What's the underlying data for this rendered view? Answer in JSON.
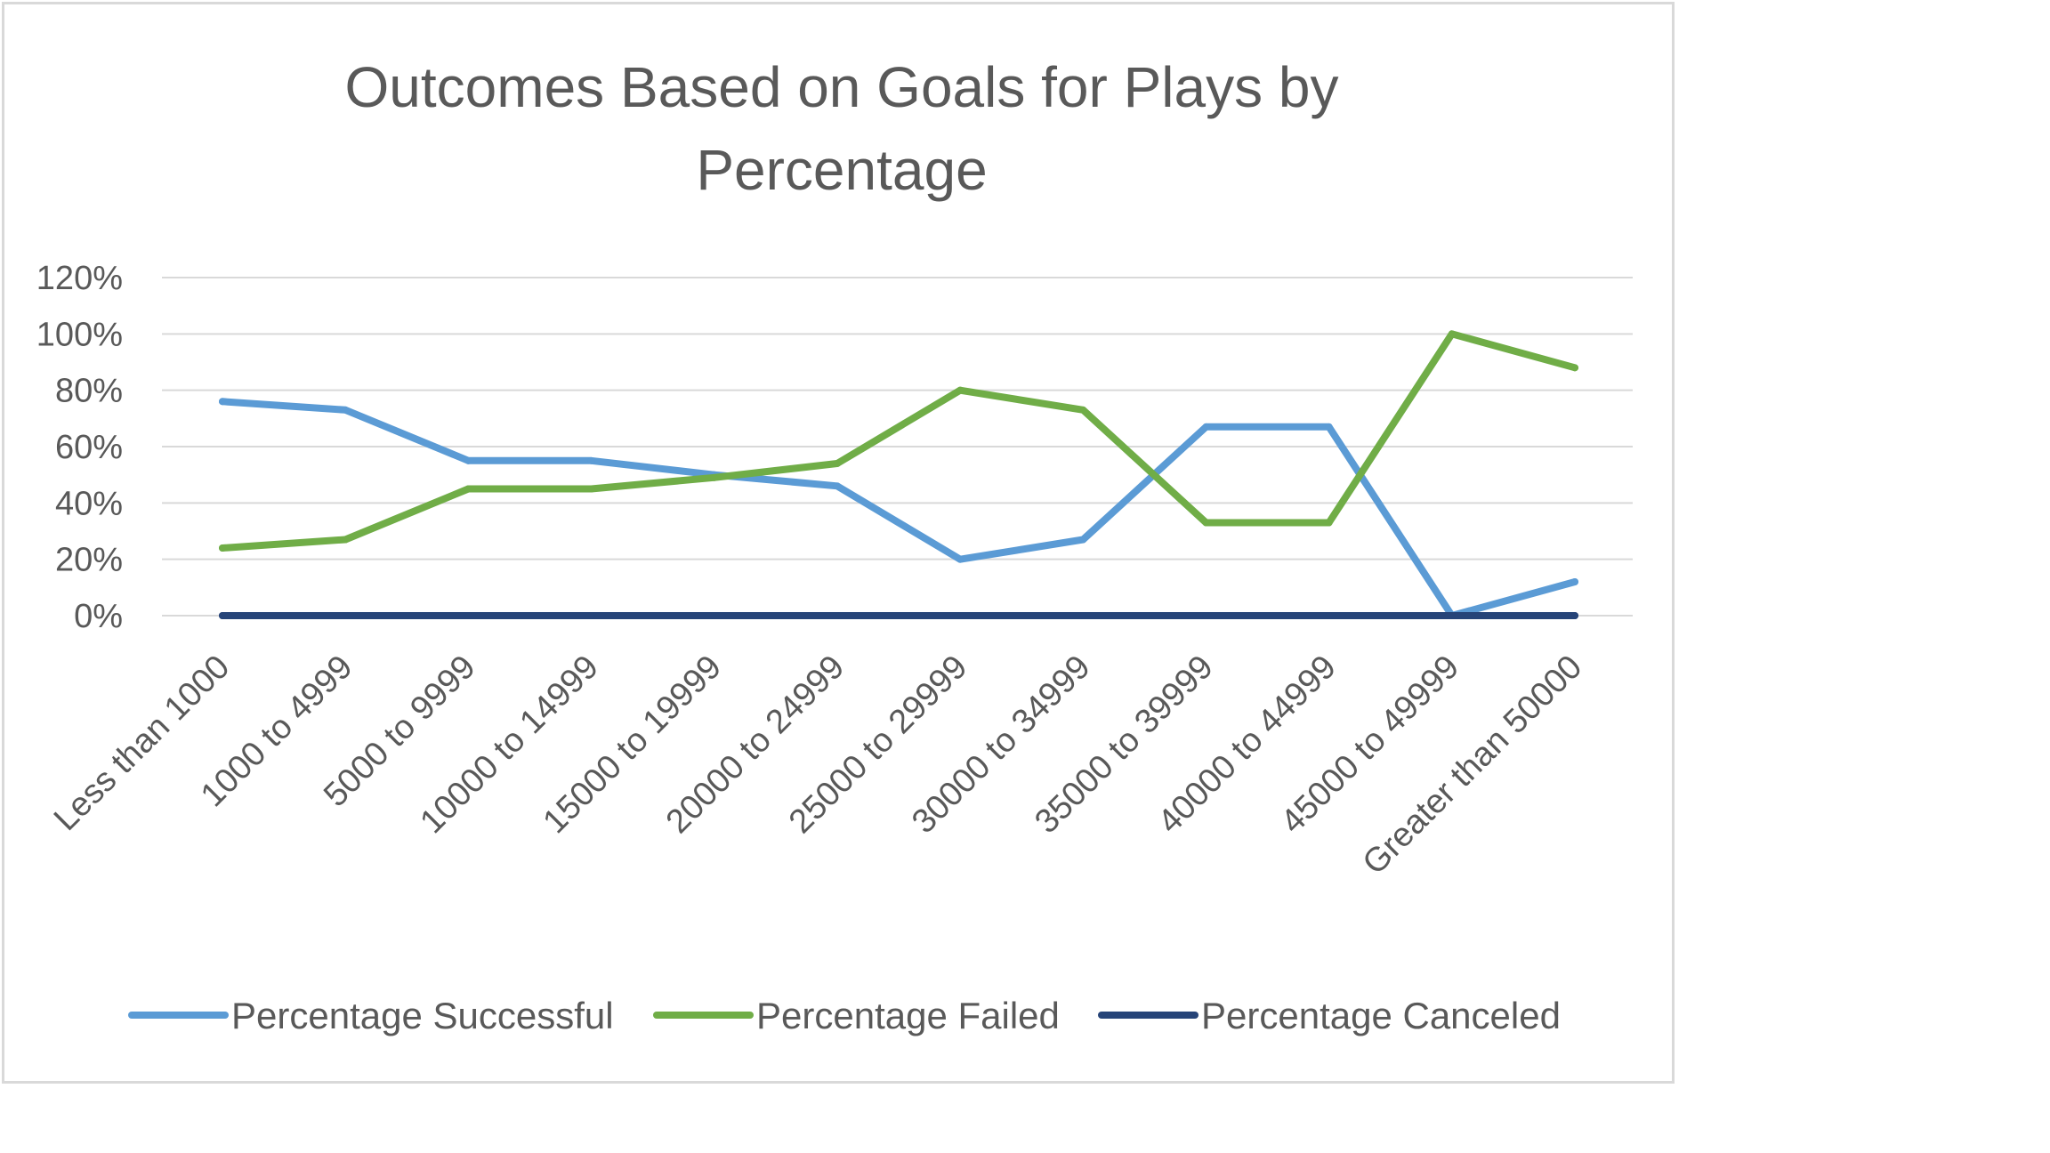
{
  "chart_data": {
    "type": "line",
    "title": "Outcomes Based on Goals for Plays by Percentage",
    "title_lines": [
      "Outcomes Based on Goals for Plays by",
      "Percentage"
    ],
    "xlabel": "",
    "ylabel": "",
    "categories": [
      "Less than 1000",
      "1000 to 4999",
      "5000 to 9999",
      "10000 to 14999",
      "15000 to 19999",
      "20000 to 24999",
      "25000 to 29999",
      "30000 to 34999",
      "35000 to 39999",
      "40000 to 44999",
      "45000 to 49999",
      "Greater than 50000"
    ],
    "y_ticks": [
      "0%",
      "20%",
      "40%",
      "60%",
      "80%",
      "100%",
      "120%"
    ],
    "y_tick_values": [
      0,
      20,
      40,
      60,
      80,
      100,
      120
    ],
    "ylim": [
      0,
      120
    ],
    "grid": true,
    "legend_position": "bottom",
    "series": [
      {
        "name": "Percentage Successful",
        "color": "#5b9bd5",
        "values": [
          76,
          73,
          55,
          55,
          50,
          46,
          20,
          27,
          67,
          67,
          0,
          12
        ]
      },
      {
        "name": "Percentage Failed",
        "color": "#70ad47",
        "values": [
          24,
          27,
          45,
          45,
          49,
          54,
          80,
          73,
          33,
          33,
          100,
          88
        ]
      },
      {
        "name": "Percentage Canceled",
        "color": "#264478",
        "values": [
          0,
          0,
          0,
          0,
          0,
          0,
          0,
          0,
          0,
          0,
          0,
          0
        ]
      }
    ]
  }
}
